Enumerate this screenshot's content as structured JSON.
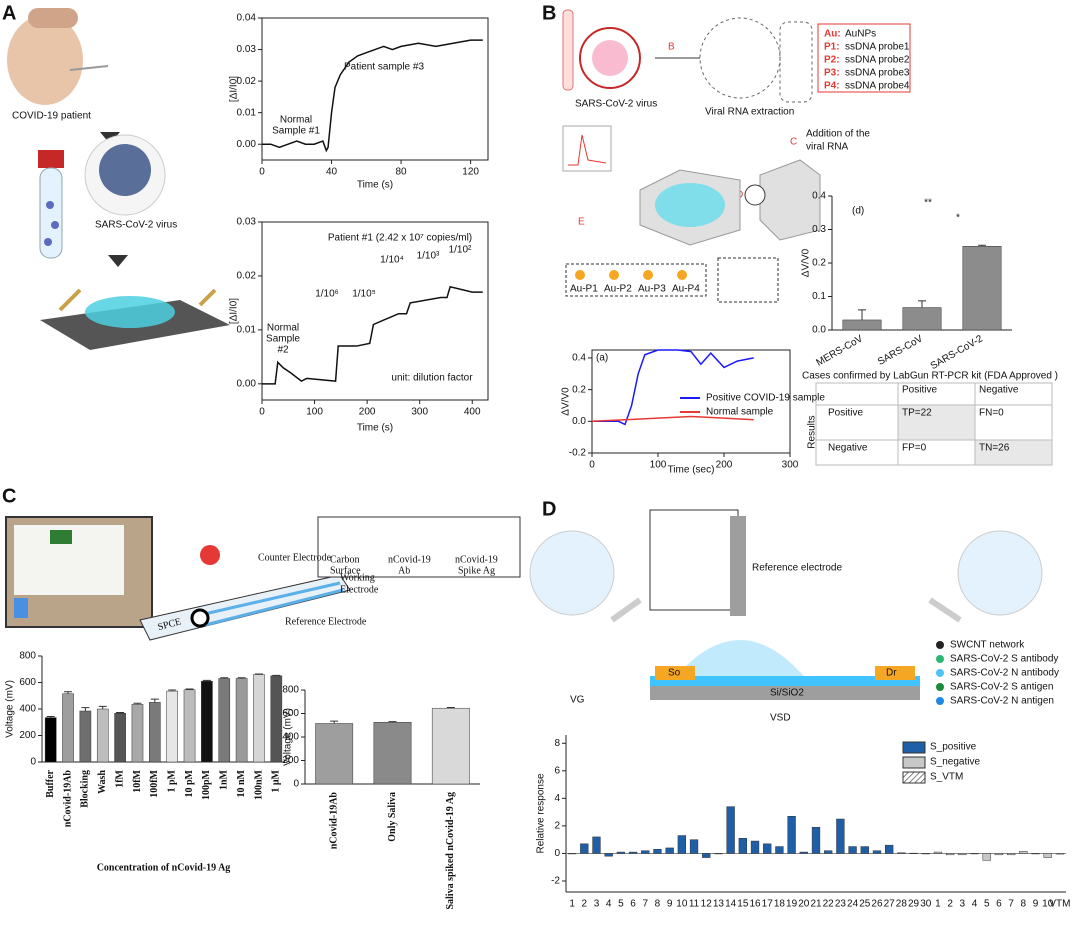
{
  "panels": {
    "a": "A",
    "b": "B",
    "c": "C",
    "d": "D"
  },
  "panel_a": {
    "patient": "COVID-19 patient",
    "virus": "SARS-CoV-2 virus"
  },
  "panel_b": {
    "virus": "SARS-CoV-2 virus",
    "extraction": "Viral RNA extraction",
    "steps": [
      "B",
      "C",
      "D",
      "E"
    ],
    "addition": [
      "Addition of the",
      "viral RNA"
    ],
    "legend": [
      {
        "key": "Au:",
        "text": "AuNPs"
      },
      {
        "key": "P1:",
        "text": "ssDNA probe1"
      },
      {
        "key": "P2:",
        "text": "ssDNA probe2"
      },
      {
        "key": "P3:",
        "text": "ssDNA probe3"
      },
      {
        "key": "P4:",
        "text": "ssDNA probe4"
      }
    ],
    "probes": [
      "Au-P1",
      "Au-P2",
      "Au-P3",
      "Au-P4"
    ]
  },
  "table": {
    "caption": "Cases confirmed by LabGun RT-PCR kit (FDA Approved )",
    "columns": [
      "Positive",
      "Negative"
    ],
    "side": "Results",
    "rows": [
      [
        "Positive",
        "TP=22",
        "FN=0"
      ],
      [
        "Negative",
        "FP=0",
        "TN=26"
      ]
    ]
  },
  "panel_c": {
    "counter": "Counter Electrode",
    "working": [
      "Working",
      "Electrode"
    ],
    "reference": "Reference Electrode",
    "spce": "SPCE",
    "legend": [
      [
        "Carbon",
        "Surface"
      ],
      [
        "nCovid-19",
        "Ab"
      ],
      [
        "nCovid-19",
        "Spike Ag"
      ]
    ]
  },
  "panel_d": {
    "reference": "Reference electrode",
    "vg": "VG",
    "vsd": "VSD",
    "so": "So",
    "dr": "Dr",
    "substrate": "Si/SiO2",
    "legend": [
      "SWCNT network",
      "SARS-CoV-2 S antibody",
      "SARS-CoV-2 N antibody",
      "SARS-CoV-2 S antigen",
      "SARS-CoV-2 N antigen"
    ]
  },
  "chart_data": [
    {
      "type": "line",
      "xlabel": "Time (s)",
      "ylabel": "[ΔI/I0]",
      "xlim": [
        0,
        130
      ],
      "xticks": [
        0,
        40,
        80,
        120
      ],
      "ylim": [
        -0.005,
        0.04
      ],
      "yticks": [
        {
          "value": 0,
          "label": "0.00"
        },
        {
          "value": 0.01,
          "label": "0.01"
        },
        {
          "value": 0.02,
          "label": "0.02"
        },
        {
          "value": 0.03,
          "label": "0.03"
        },
        {
          "value": 0.04,
          "label": "0.04"
        }
      ],
      "annotations": [
        "Normal",
        "Sample #1",
        "Patient sample #3"
      ],
      "series": [
        {
          "color": "#111111",
          "x": [
            0,
            5,
            10,
            15,
            20,
            25,
            30,
            35,
            37,
            38,
            40,
            42,
            45,
            50,
            55,
            60,
            65,
            70,
            75,
            80,
            90,
            100,
            110,
            120,
            127
          ],
          "values": [
            0,
            0,
            -0.001,
            0,
            0.001,
            0,
            0,
            0.001,
            -0.002,
            -0.001,
            0.01,
            0.018,
            0.022,
            0.026,
            0.028,
            0.029,
            0.03,
            0.031,
            0.03,
            0.031,
            0.032,
            0.031,
            0.032,
            0.033,
            0.033
          ]
        }
      ]
    },
    {
      "type": "line",
      "xlabel": "Time (s)",
      "ylabel": "[ΔI/I0]",
      "xlim": [
        0,
        430
      ],
      "xticks": [
        0,
        100,
        200,
        300,
        400
      ],
      "ylim": [
        -0.003,
        0.03
      ],
      "yticks": [
        {
          "value": 0,
          "label": "0.00"
        },
        {
          "value": 0.01,
          "label": "0.01"
        },
        {
          "value": 0.02,
          "label": "0.02"
        },
        {
          "value": 0.03,
          "label": "0.03"
        }
      ],
      "annotations": [
        "Patient #1 (2.42 x 10⁷ copies/ml)",
        "Normal",
        "Sample",
        "#2",
        "1/10⁶",
        "1/10⁵",
        "1/10⁴",
        "1/10³",
        "1/10²",
        "unit: dilution factor"
      ],
      "series": [
        {
          "color": "#111111",
          "x": [
            0,
            25,
            30,
            40,
            55,
            75,
            85,
            140,
            145,
            180,
            205,
            212,
            260,
            275,
            282,
            340,
            352,
            358,
            400,
            420
          ],
          "values": [
            0,
            0,
            0.004,
            0.003,
            0.002,
            0.0005,
            0.001,
            0.0005,
            0.007,
            0.007,
            0.0075,
            0.011,
            0.013,
            0.013,
            0.015,
            0.016,
            0.016,
            0.018,
            0.017,
            0.017
          ]
        }
      ]
    },
    {
      "type": "bar",
      "tag": "(d)",
      "ylabel": "ΔV/V0",
      "categories": [
        "MERS-CoV",
        "SARS-CoV",
        "SARS-CoV-2"
      ],
      "values": [
        0.03,
        0.067,
        0.25
      ],
      "errors": [
        0.03,
        0.02,
        0.003
      ],
      "color": "#8c8c8c",
      "ylim": [
        0,
        0.4
      ],
      "yticks": [
        {
          "value": 0,
          "label": "0.0"
        },
        0.1,
        0.2,
        0.3,
        0.4
      ],
      "annotations": [
        "**",
        "*"
      ]
    },
    {
      "type": "line",
      "tag": "(a)",
      "xlabel": "Time (sec)",
      "ylabel": "ΔV/V0",
      "xlim": [
        0,
        300
      ],
      "xticks": [
        0,
        100,
        200,
        300
      ],
      "ylim": [
        -0.2,
        0.45
      ],
      "yticks": [
        -0.2,
        {
          "value": 0,
          "label": "0.0"
        },
        0.2,
        0.4
      ],
      "series": [
        {
          "name": "Positive COVID-19 sample",
          "color": "#1a1aff",
          "x": [
            0,
            40,
            50,
            60,
            70,
            80,
            100,
            130,
            150,
            165,
            180,
            200,
            220,
            245
          ],
          "values": [
            0,
            0,
            -0.02,
            0.1,
            0.3,
            0.42,
            0.45,
            0.45,
            0.44,
            0.36,
            0.43,
            0.34,
            0.38,
            0.4
          ]
        },
        {
          "name": "Normal sample",
          "color": "#e53935",
          "x": [
            0,
            50,
            100,
            150,
            200,
            245
          ],
          "values": [
            0,
            0.01,
            0.02,
            0.03,
            0.02,
            0.01
          ]
        }
      ]
    },
    {
      "type": "bar",
      "xlabel": "Concentration of nCovid-19 Ag",
      "ylabel": "Voltage (mV)",
      "categories": [
        "Buffer",
        "nCovid-19Ab",
        "Blocking",
        "Wash",
        "1fM",
        "10fM",
        "100fM",
        "1 pM",
        "10 pM",
        "100pM",
        "1nM",
        "10 nM",
        "100nM",
        "1 μM"
      ],
      "values": [
        335,
        515,
        385,
        400,
        368,
        435,
        450,
        535,
        545,
        610,
        630,
        630,
        660,
        650
      ],
      "errors": [
        8,
        15,
        25,
        20,
        6,
        8,
        25,
        8,
        6,
        6,
        6,
        6,
        4,
        4
      ],
      "colors": [
        "#000000",
        "#9e9e9e",
        "#6e6e6e",
        "#bdbdbd",
        "#555555",
        "#a8a8a8",
        "#7a7a7a",
        "#e6e6e6",
        "#bcbcbc",
        "#111111",
        "#7a7a7a",
        "#9a9a9a",
        "#d6d6d6",
        "#555555"
      ],
      "ylim": [
        0,
        800
      ],
      "yticks": [
        0,
        200,
        400,
        600,
        800
      ]
    },
    {
      "type": "bar",
      "ylabel": "Voltage (mV)",
      "categories": [
        "nCovid-19Ab",
        "Only Saliva",
        "Saliva spiked nCovid-19 Ag"
      ],
      "values": [
        515,
        525,
        645
      ],
      "errors": [
        20,
        6,
        6
      ],
      "colors": [
        "#9e9e9e",
        "#8a8a8a",
        "#d9d9d9"
      ],
      "ylim": [
        0,
        800
      ],
      "yticks": [
        0,
        200,
        400,
        600,
        800
      ]
    },
    {
      "type": "bar",
      "ylabel": "Relative response",
      "ylim": [
        -2.8,
        8.6
      ],
      "yticks": [
        -2,
        0,
        2,
        4,
        6,
        8
      ],
      "categories": [
        "1",
        "2",
        "3",
        "4",
        "5",
        "6",
        "7",
        "8",
        "9",
        "10",
        "11",
        "12",
        "13",
        "14",
        "15",
        "16",
        "17",
        "18",
        "19",
        "20",
        "21",
        "22",
        "23",
        "24",
        "25",
        "26",
        "27",
        "28",
        "29",
        "30",
        "1",
        "2",
        "3",
        "4",
        "5",
        "6",
        "7",
        "8",
        "9",
        "10",
        "VTM"
      ],
      "series": [
        {
          "name": "S_positive",
          "color": "#1f5fa8",
          "values": [
            0,
            0.7,
            1.2,
            -0.2,
            0.1,
            0.1,
            0.2,
            0.3,
            0.4,
            1.3,
            1,
            -0.3,
            0,
            3.4,
            1.1,
            0.9,
            0.7,
            0.5,
            2.7,
            0.1,
            1.9,
            0.2,
            2.5,
            0.5,
            0.5,
            0.2,
            0.6,
            0.05,
            0.02,
            0,
            null,
            null,
            null,
            null,
            null,
            null,
            null,
            null,
            null,
            null,
            null
          ]
        },
        {
          "name": "S_negative",
          "color": "#c8c8c8",
          "values": [
            null,
            null,
            null,
            null,
            null,
            null,
            null,
            null,
            null,
            null,
            null,
            null,
            null,
            null,
            null,
            null,
            null,
            null,
            null,
            null,
            null,
            null,
            null,
            null,
            null,
            null,
            null,
            null,
            null,
            null,
            0.1,
            -0.1,
            -0.1,
            0,
            -0.5,
            -0.1,
            -0.1,
            0.15,
            0,
            -0.3,
            null
          ]
        },
        {
          "name": "S_VTM",
          "color": "url(#hatch)",
          "values": [
            null,
            null,
            null,
            null,
            null,
            null,
            null,
            null,
            null,
            null,
            null,
            null,
            null,
            null,
            null,
            null,
            null,
            null,
            null,
            null,
            null,
            null,
            null,
            null,
            null,
            null,
            null,
            null,
            null,
            null,
            null,
            null,
            null,
            null,
            null,
            null,
            null,
            null,
            null,
            null,
            -0.05
          ]
        }
      ]
    }
  ]
}
